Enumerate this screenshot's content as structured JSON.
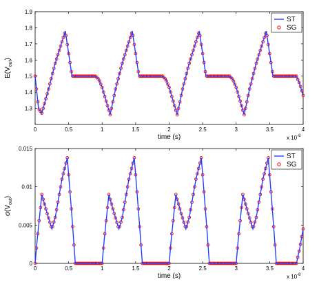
{
  "chart_data": [
    {
      "type": "line",
      "xlabel": "time (s)",
      "ylabel": {
        "base": "E(V",
        "sub": "out",
        "close": ")"
      },
      "x_multiplier": {
        "base": "x 10",
        "exp": "-8"
      },
      "xlim": [
        0,
        4
      ],
      "ylim": [
        1.2,
        1.9
      ],
      "x_ticks": [
        "0",
        "0.5",
        "1",
        "1.5",
        "2",
        "2.5",
        "3",
        "3.5",
        "4"
      ],
      "y_ticks": [
        "1.3",
        "1.4",
        "1.5",
        "1.6",
        "1.7",
        "1.8",
        "1.9"
      ],
      "legend_position": "top-right",
      "series": [
        {
          "name": "ST",
          "style": "line",
          "color": "#1f3fff"
        },
        {
          "name": "SG",
          "style": "markers",
          "color": "#ff0000"
        }
      ],
      "x": [
        0,
        0.05,
        0.1,
        0.2,
        0.3,
        0.45,
        0.55,
        0.6,
        0.9,
        0.95,
        1.0,
        1.12,
        1.2,
        1.3,
        1.45,
        1.55,
        1.6,
        1.9,
        1.95,
        2.0,
        2.12,
        2.2,
        2.3,
        2.45,
        2.55,
        2.6,
        2.9,
        2.95,
        3.0,
        3.12,
        3.2,
        3.3,
        3.45,
        3.55,
        3.6,
        3.9,
        3.95,
        4.0
      ],
      "y": [
        1.5,
        1.3,
        1.27,
        1.42,
        1.58,
        1.78,
        1.5,
        1.5,
        1.5,
        1.48,
        1.43,
        1.26,
        1.42,
        1.58,
        1.78,
        1.5,
        1.5,
        1.5,
        1.48,
        1.43,
        1.26,
        1.42,
        1.58,
        1.78,
        1.5,
        1.5,
        1.5,
        1.48,
        1.43,
        1.26,
        1.42,
        1.58,
        1.78,
        1.5,
        1.5,
        1.5,
        1.45,
        1.38
      ]
    },
    {
      "type": "line",
      "xlabel": "time (s)",
      "ylabel": {
        "base": "σ(V",
        "sub": "out",
        "close": ")"
      },
      "x_multiplier": {
        "base": "x 10",
        "exp": "-8"
      },
      "xlim": [
        0,
        4
      ],
      "ylim": [
        0,
        0.015
      ],
      "x_ticks": [
        "0",
        "0.5",
        "1",
        "1.5",
        "2",
        "2.5",
        "3",
        "3.5",
        "4"
      ],
      "y_ticks": [
        "0",
        "0.005",
        "0.01",
        "0.015"
      ],
      "legend_position": "top-right",
      "series": [
        {
          "name": "ST",
          "style": "line",
          "color": "#1f3fff"
        },
        {
          "name": "SG",
          "style": "markers",
          "color": "#ff0000"
        }
      ],
      "x": [
        0,
        0.03,
        0.1,
        0.18,
        0.25,
        0.3,
        0.4,
        0.48,
        0.55,
        0.6,
        0.9,
        1.0,
        1.03,
        1.1,
        1.18,
        1.25,
        1.3,
        1.4,
        1.48,
        1.55,
        1.6,
        1.9,
        2.0,
        2.03,
        2.1,
        2.18,
        2.25,
        2.3,
        2.4,
        2.48,
        2.55,
        2.6,
        2.9,
        3.0,
        3.03,
        3.1,
        3.18,
        3.25,
        3.3,
        3.4,
        3.48,
        3.55,
        3.6,
        3.9,
        3.95,
        4.0
      ],
      "y": [
        0,
        0.003,
        0.009,
        0.0065,
        0.0045,
        0.006,
        0.011,
        0.0138,
        0.006,
        0,
        0,
        0,
        0.003,
        0.009,
        0.0065,
        0.0045,
        0.006,
        0.011,
        0.0138,
        0.006,
        0,
        0,
        0,
        0.003,
        0.009,
        0.0065,
        0.0045,
        0.006,
        0.011,
        0.0138,
        0.006,
        0,
        0,
        0,
        0.003,
        0.009,
        0.0065,
        0.0045,
        0.006,
        0.011,
        0.0138,
        0.006,
        0,
        0,
        0.002,
        0.0045
      ]
    }
  ]
}
